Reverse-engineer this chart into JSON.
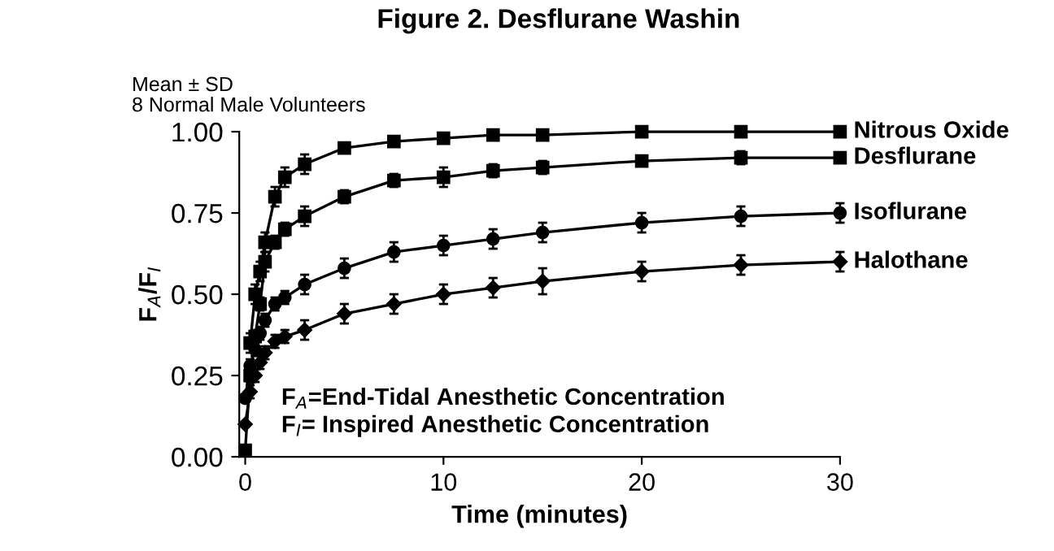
{
  "chart_data": {
    "type": "line",
    "title": "Figure 2. Desflurane Washin",
    "xlabel": "Time (minutes)",
    "ylabel": "F$_{A}$/F$_{I}$",
    "annotations": [
      "Mean ± SD\n8 Normal Male Volunteers",
      "F$_{A}$=End-Tidal Anesthetic Concentration\nF$_{I}$= Inspired Anesthetic Concentration"
    ],
    "x": [
      0,
      0.25,
      0.5,
      0.75,
      1,
      1.5,
      2,
      3,
      5,
      7.5,
      10,
      12.5,
      15,
      20,
      25,
      30
    ],
    "series": [
      {
        "name": "Nitrous Oxide",
        "color": "#000000",
        "marker": "square",
        "values": [
          null,
          0.35,
          0.5,
          0.57,
          0.66,
          0.8,
          0.86,
          0.9,
          0.95,
          0.97,
          0.98,
          0.99,
          0.99,
          1.0,
          1.0,
          1.0
        ],
        "errors": [
          null,
          0.03,
          0.03,
          0.03,
          0.03,
          0.03,
          0.03,
          0.03,
          0.01,
          0.01,
          0.01,
          0.01,
          0.01,
          0.01,
          0.01,
          0.01
        ]
      },
      {
        "name": "Desflurane",
        "color": "#000000",
        "marker": "square",
        "values": [
          0.02,
          0.25,
          0.37,
          0.47,
          0.6,
          0.66,
          0.7,
          0.74,
          0.8,
          0.85,
          0.86,
          0.88,
          0.89,
          0.91,
          0.92,
          0.92
        ],
        "errors": [
          null,
          0.02,
          0.02,
          0.02,
          0.03,
          0.02,
          0.02,
          0.03,
          0.02,
          0.02,
          0.03,
          0.02,
          0.02,
          0.01,
          0.02,
          0.01
        ]
      },
      {
        "name": "Isoflurane",
        "color": "#000000",
        "marker": "circle",
        "values": [
          0.18,
          0.28,
          0.33,
          0.38,
          0.42,
          0.47,
          0.49,
          0.53,
          0.58,
          0.63,
          0.65,
          0.67,
          0.69,
          0.72,
          0.74,
          0.75
        ],
        "errors": [
          null,
          0.02,
          0.02,
          0.02,
          0.02,
          0.02,
          0.02,
          0.03,
          0.03,
          0.03,
          0.03,
          0.03,
          0.03,
          0.03,
          0.03,
          0.03
        ]
      },
      {
        "name": "Halothane",
        "color": "#000000",
        "marker": "diamond",
        "values": [
          0.1,
          0.2,
          0.25,
          0.29,
          0.32,
          0.355,
          0.37,
          0.39,
          0.44,
          0.47,
          0.5,
          0.52,
          0.54,
          0.57,
          0.59,
          0.6
        ],
        "errors": [
          null,
          0.02,
          0.02,
          0.02,
          0.02,
          0.02,
          0.02,
          0.03,
          0.03,
          0.03,
          0.03,
          0.03,
          0.04,
          0.03,
          0.03,
          0.03
        ]
      }
    ],
    "xlim": [
      -0.3,
      30
    ],
    "xticks": [
      0,
      10,
      20,
      30
    ],
    "ylim": [
      0,
      1.0
    ],
    "yticks": [
      {
        "value": 0,
        "label": "0.00"
      },
      {
        "value": 0.25,
        "label": "0.25"
      },
      {
        "value": 0.5,
        "label": "0.50"
      },
      {
        "value": 0.75,
        "label": "0.75"
      },
      {
        "value": 1.0,
        "label": "1.00"
      }
    ],
    "grid": false,
    "legend": false
  }
}
